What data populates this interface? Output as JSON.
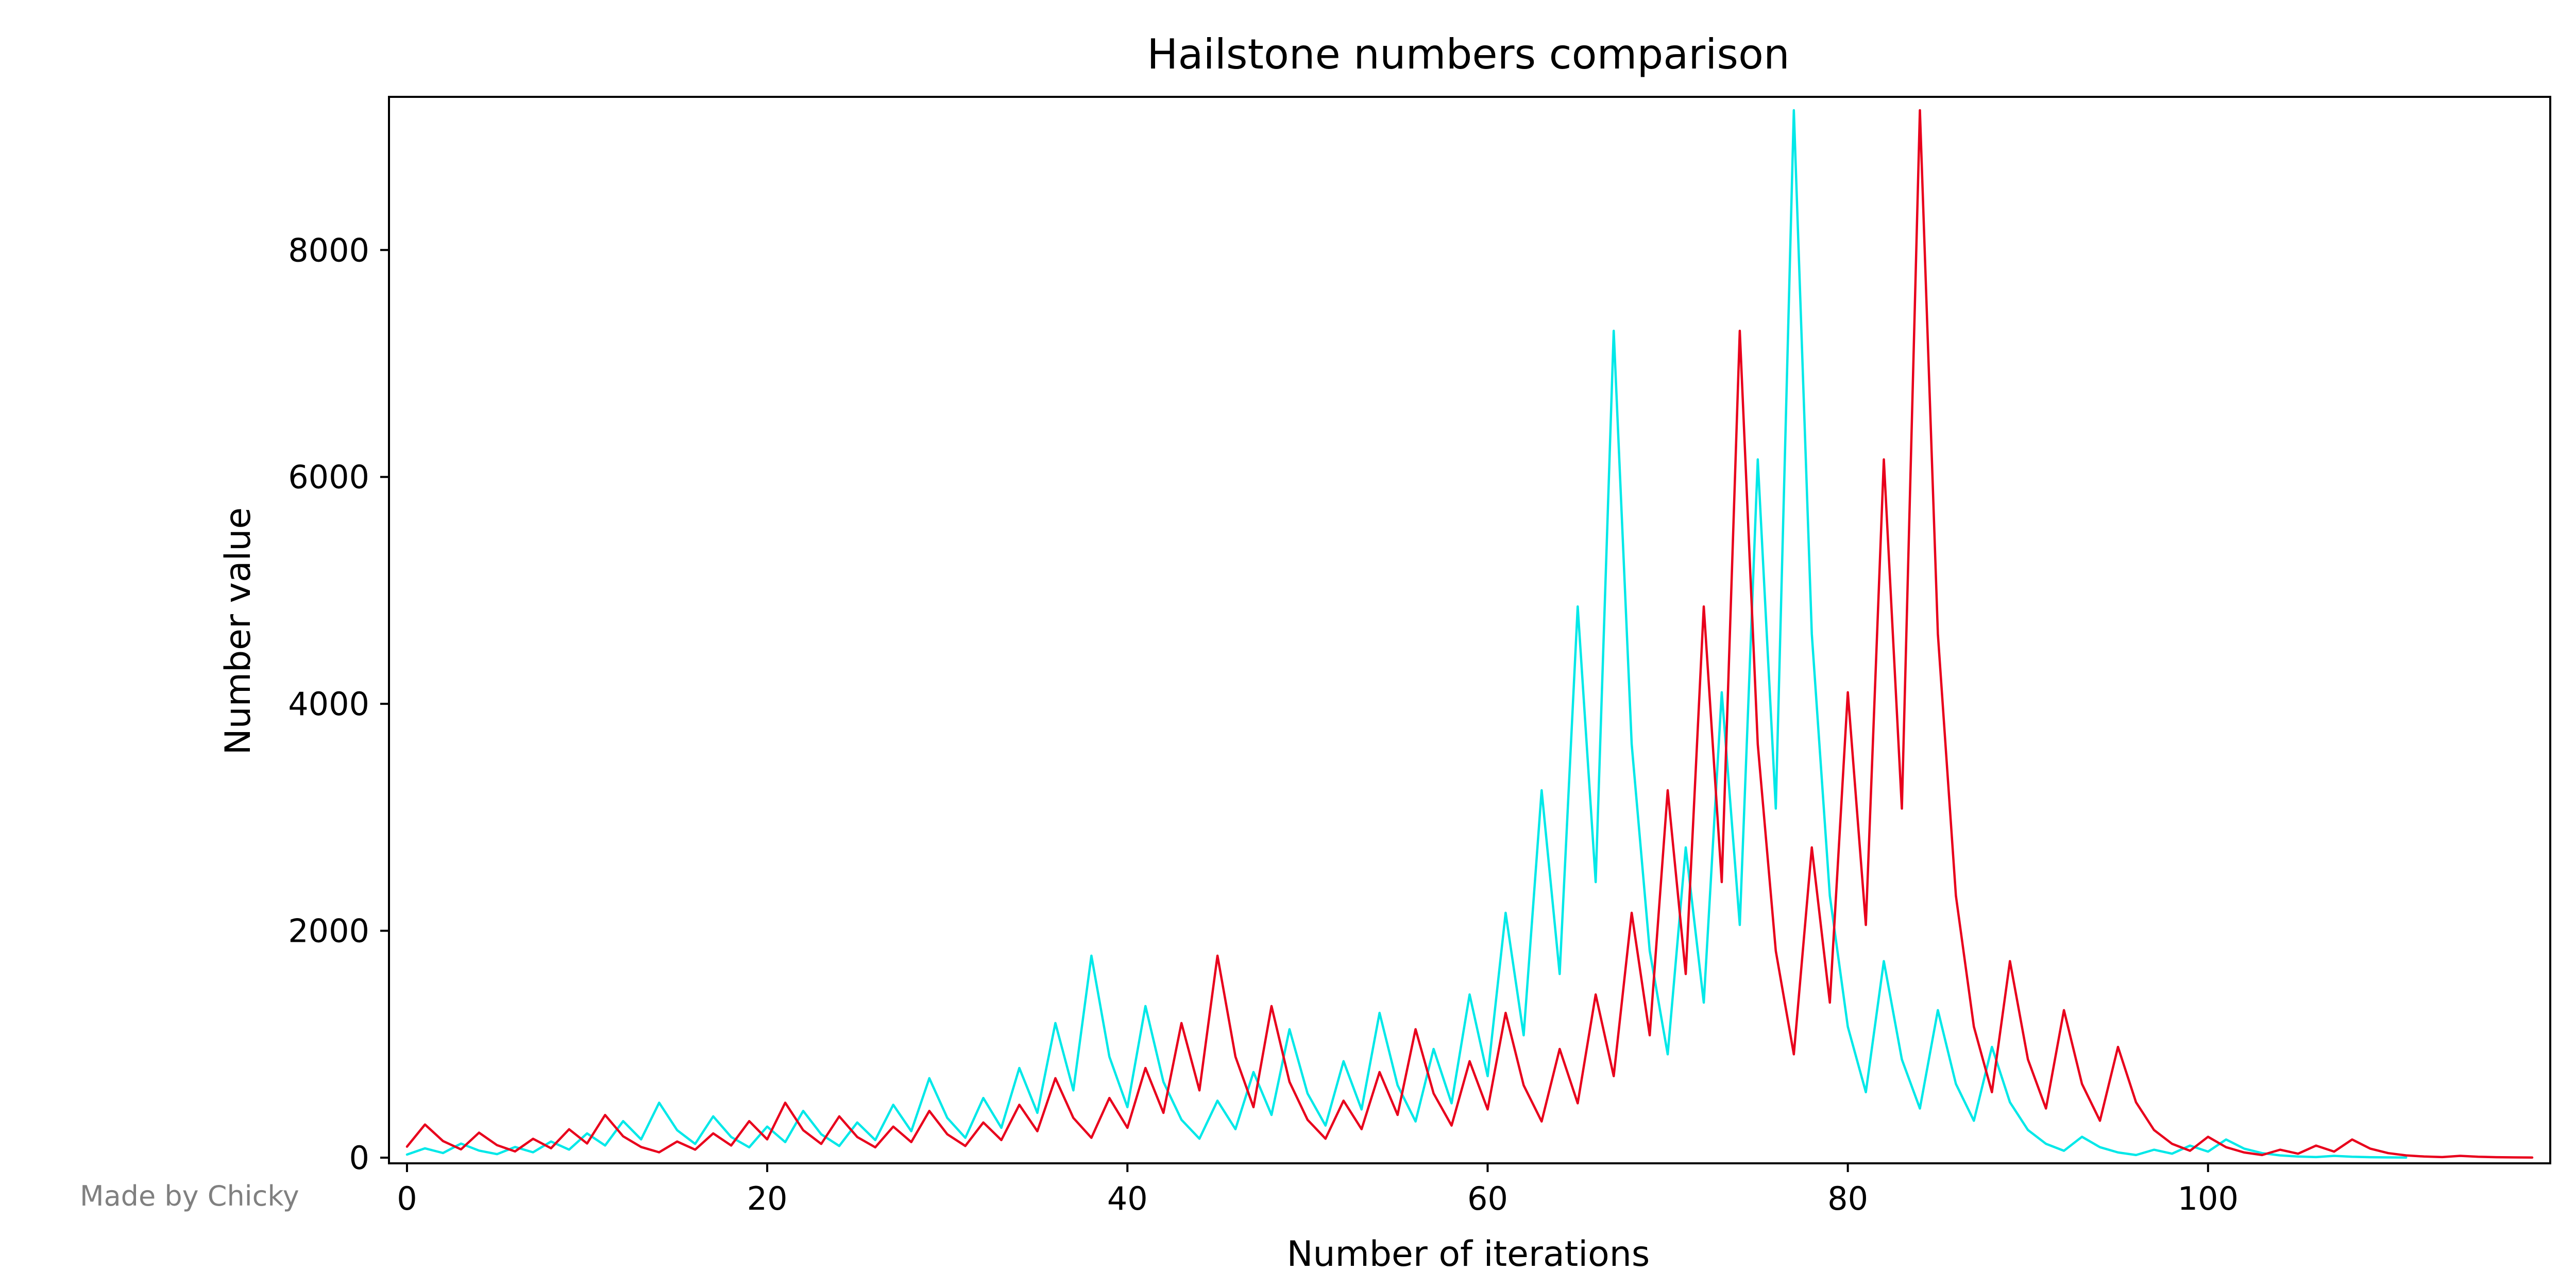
{
  "chart_data": {
    "type": "line",
    "title": "Hailstone numbers comparison",
    "xlabel": "Number of iterations",
    "ylabel": "Number value",
    "xlim": [
      -1,
      119
    ],
    "ylim": [
      -50,
      9350
    ],
    "xticks": [
      0,
      20,
      40,
      60,
      80,
      100
    ],
    "yticks": [
      0,
      2000,
      4000,
      6000,
      8000
    ],
    "grid": false,
    "legend": "none",
    "series": [
      {
        "name": "cyan sequence",
        "color": "#00e8e8",
        "values": [
          27,
          82,
          41,
          124,
          62,
          31,
          94,
          47,
          142,
          71,
          214,
          107,
          322,
          161,
          484,
          242,
          121,
          364,
          182,
          91,
          274,
          137,
          412,
          206,
          103,
          310,
          155,
          466,
          233,
          700,
          350,
          175,
          526,
          263,
          790,
          395,
          1186,
          593,
          1780,
          890,
          445,
          1336,
          668,
          334,
          167,
          502,
          251,
          754,
          377,
          1132,
          566,
          283,
          850,
          425,
          1276,
          638,
          319,
          958,
          479,
          1438,
          719,
          2158,
          1079,
          3238,
          1619,
          4858,
          2429,
          7288,
          3644,
          1822,
          911,
          2734,
          1367,
          4102,
          2051,
          6154,
          3077,
          9232,
          4616,
          2308,
          1154,
          577,
          1732,
          866,
          433,
          1300,
          650,
          325,
          976,
          488,
          244,
          122,
          61,
          184,
          92,
          46,
          23,
          70,
          35,
          106,
          53,
          160,
          80,
          40,
          20,
          10,
          5,
          16,
          8,
          4,
          2,
          1
        ]
      },
      {
        "name": "red sequence",
        "color": "#e8001c",
        "values": [
          97,
          292,
          146,
          73,
          220,
          110,
          55,
          166,
          83,
          250,
          125,
          376,
          188,
          94,
          47,
          142,
          71,
          214,
          107,
          322,
          161,
          484,
          242,
          121,
          364,
          182,
          91,
          274,
          137,
          412,
          206,
          103,
          310,
          155,
          466,
          233,
          700,
          350,
          175,
          526,
          263,
          790,
          395,
          1186,
          593,
          1780,
          890,
          445,
          1336,
          668,
          334,
          167,
          502,
          251,
          754,
          377,
          1132,
          566,
          283,
          850,
          425,
          1276,
          638,
          319,
          958,
          479,
          1438,
          719,
          2158,
          1079,
          3238,
          1619,
          4858,
          2429,
          7288,
          3644,
          1822,
          911,
          2734,
          1367,
          4102,
          2051,
          6154,
          3077,
          9232,
          4616,
          2308,
          1154,
          577,
          1732,
          866,
          433,
          1300,
          650,
          325,
          976,
          488,
          244,
          122,
          61,
          184,
          92,
          46,
          23,
          70,
          35,
          106,
          53,
          160,
          80,
          40,
          20,
          10,
          5,
          16,
          8,
          4,
          2,
          1
        ]
      }
    ]
  },
  "credit": "Made by Chicky"
}
